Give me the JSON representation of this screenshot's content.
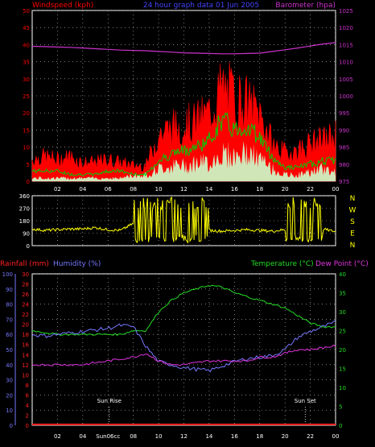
{
  "colors": {
    "background": "#000000",
    "axis_border": "#ffffff",
    "grid": "#cccccc",
    "windspeed": "#ff0000",
    "gust": "#ff0000",
    "avg_wind": "#00cc00",
    "calm_fill": "#ccffcc",
    "barometer": "#cc33cc",
    "direction": "#ffff00",
    "rainfall": "#ff2020",
    "humidity": "#7777ff",
    "temperature": "#22dd22",
    "dewpoint": "#dd33dd",
    "title": "#4444ff",
    "white_text": "#ffffff"
  },
  "chart_data": [
    {
      "id": "wind",
      "type": "line",
      "title": "24 hour graph data  01 Jun 2005",
      "left_axis_label": "Windspeed (kph)",
      "right_axis_label": "Barometer (hpa)",
      "x_tick_labels": [
        "02",
        "04",
        "06",
        "08",
        "10",
        "12",
        "14",
        "16",
        "18",
        "20",
        "22",
        "00"
      ],
      "y_left_ticks": [
        "0",
        "5",
        "10",
        "15",
        "20",
        "25",
        "30",
        "35",
        "40",
        "45",
        "50"
      ],
      "y_left_range": [
        0,
        50
      ],
      "y_right_ticks": [
        "975",
        "980",
        "985",
        "990",
        "995",
        "1000",
        "1005",
        "1010",
        "1015",
        "1020",
        "1025"
      ],
      "y_right_range": [
        975,
        1025
      ],
      "hours": [
        0,
        1,
        2,
        3,
        4,
        5,
        6,
        7,
        8,
        9,
        10,
        11,
        12,
        13,
        14,
        15,
        16,
        17,
        18,
        19,
        20,
        21,
        22,
        23,
        24
      ],
      "series": [
        {
          "key": "gust",
          "values": [
            7,
            8,
            7,
            8,
            6,
            6,
            7,
            6,
            5,
            5,
            15,
            17,
            18,
            19,
            22,
            30,
            27,
            25,
            22,
            12,
            9,
            10,
            12,
            13,
            15
          ]
        },
        {
          "key": "avg_wind",
          "values": [
            3,
            3,
            3,
            2,
            2,
            2,
            3,
            3,
            2,
            2,
            6,
            8,
            9,
            10,
            12,
            18,
            15,
            16,
            13,
            7,
            4,
            4,
            5,
            6,
            6
          ]
        },
        {
          "key": "calm",
          "values": [
            1,
            1,
            1,
            1,
            1,
            1,
            1,
            1,
            2,
            2,
            4,
            5,
            5,
            6,
            6,
            9,
            8,
            9,
            7,
            4,
            2,
            2,
            3,
            4,
            3
          ]
        },
        {
          "key": "barometer",
          "values": [
            1014.5,
            1014.4,
            1014.3,
            1014.2,
            1014.0,
            1013.8,
            1013.6,
            1013.4,
            1013.3,
            1013.2,
            1013.0,
            1012.8,
            1012.6,
            1012.5,
            1012.4,
            1012.3,
            1012.3,
            1012.4,
            1012.5,
            1013.0,
            1013.5,
            1014.0,
            1014.6,
            1015.2,
            1015.6
          ]
        }
      ]
    },
    {
      "id": "direction",
      "type": "line",
      "y_tick_labels": [
        "360",
        "270",
        "180",
        "90",
        "0"
      ],
      "y_range": [
        0,
        360
      ],
      "compass_labels": [
        "N",
        "W",
        "S",
        "E",
        "N"
      ],
      "hours": [
        0,
        1,
        2,
        3,
        4,
        5,
        6,
        7,
        8,
        9,
        10,
        11,
        12,
        13,
        14,
        15,
        16,
        17,
        18,
        19,
        20,
        21,
        22,
        23,
        24
      ],
      "values": [
        120,
        110,
        115,
        120,
        120,
        130,
        115,
        110,
        160,
        230,
        200,
        220,
        200,
        180,
        110,
        105,
        110,
        115,
        110,
        105,
        115,
        250,
        200,
        120,
        100
      ]
    },
    {
      "id": "temp",
      "type": "line",
      "left_axis_label_rain": "Rainfall (mm)",
      "left_axis_label_humidity": "Humidity (%)",
      "right_axis_label_temp": "Temperature (°C)",
      "right_axis_label_dew": "Dew Point (°C)",
      "x_tick_labels": [
        "02",
        "04",
        "Sun06cc",
        "08",
        "10",
        "12",
        "14",
        "16",
        "18",
        "20",
        "22",
        "00"
      ],
      "humidity_ticks": [
        "0",
        "10",
        "20",
        "30",
        "40",
        "50",
        "60",
        "70",
        "80",
        "90",
        "100"
      ],
      "humidity_range": [
        0,
        100
      ],
      "rain_ticks": [
        "0",
        "2",
        "4",
        "6",
        "8",
        "10",
        "12",
        "14",
        "16",
        "18",
        "20",
        "22",
        "24",
        "26",
        "28",
        "30"
      ],
      "rain_range": [
        0,
        30
      ],
      "temp_ticks": [
        "0",
        "5",
        "10",
        "15",
        "20",
        "25",
        "30",
        "35",
        "40"
      ],
      "temp_range": [
        0,
        40
      ],
      "sun_rise_label": "Sun Rise",
      "sun_set_label": "Sun Set",
      "sun_rise_hour": 6.1,
      "sun_set_hour": 21.6,
      "hours": [
        0,
        1,
        2,
        3,
        4,
        5,
        6,
        7,
        8,
        9,
        10,
        11,
        12,
        13,
        14,
        15,
        16,
        17,
        18,
        19,
        20,
        21,
        22,
        23,
        24
      ],
      "series": [
        {
          "key": "temperature",
          "values": [
            25,
            24.5,
            24,
            24,
            24,
            24,
            24,
            24,
            25,
            25,
            30,
            33,
            35,
            36,
            37,
            36.5,
            35,
            34,
            33,
            32,
            31,
            29,
            27,
            26,
            26
          ]
        },
        {
          "key": "humidity",
          "values": [
            60,
            59,
            60,
            61,
            62,
            63,
            64,
            66,
            65,
            52,
            42,
            40,
            38,
            37,
            36,
            39,
            42,
            44,
            45,
            46,
            50,
            58,
            62,
            65,
            68
          ]
        },
        {
          "key": "dewpoint",
          "values": [
            16,
            16,
            16,
            16,
            16,
            16.5,
            17,
            17.5,
            18,
            19,
            17,
            16,
            16,
            16.5,
            17,
            17,
            17,
            17,
            18,
            18,
            19,
            20,
            20,
            20.5,
            21
          ]
        },
        {
          "key": "rainfall",
          "values": [
            0,
            0,
            0,
            0,
            0,
            0,
            0,
            0,
            0,
            0,
            0,
            0,
            0,
            0,
            0,
            0,
            0,
            0,
            0,
            0,
            0,
            0,
            0,
            0,
            0
          ]
        }
      ]
    }
  ]
}
